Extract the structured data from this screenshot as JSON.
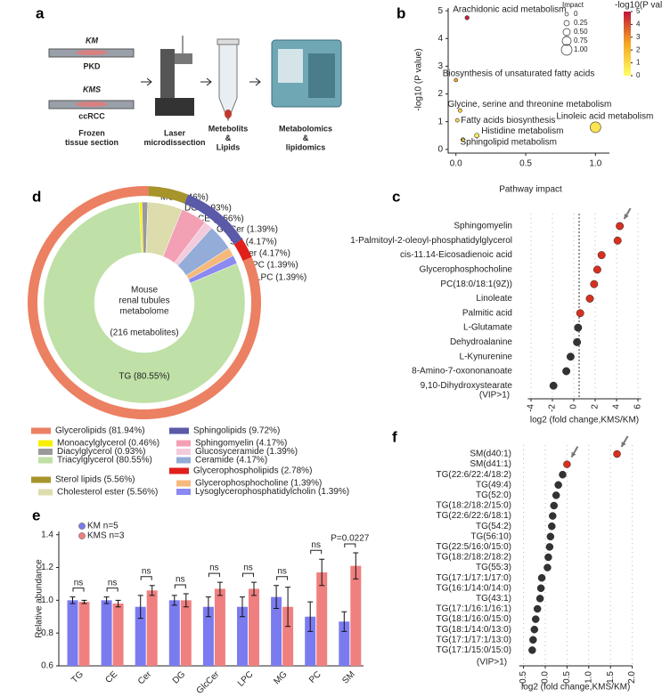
{
  "figure_a": {
    "panel": "a",
    "km": "KM",
    "pkd": "PKD",
    "kms": "KMS",
    "ccrcc": "ccRCC",
    "steps": [
      [
        "Frozen",
        "tissue section"
      ],
      [
        "Laser",
        "microdissection"
      ],
      [
        "Metebolits",
        "&",
        "Lipids"
      ],
      [
        "Metabolomics",
        "&",
        "lipidomics"
      ]
    ]
  },
  "chart_data": [
    {
      "panel": "b",
      "type": "scatter",
      "xlabel": "Pathway impact",
      "ylabel": "-log10 (P value)",
      "xlim": [
        -0.03,
        1.1
      ],
      "ylim": [
        -0.07,
        5.1
      ],
      "xticks": [
        {
          "value": 0,
          "label": "0.0"
        },
        {
          "value": 0.5,
          "label": "0.5"
        },
        {
          "value": 1,
          "label": "1.0"
        }
      ],
      "yticks": [
        0,
        1,
        2,
        3,
        4,
        5
      ],
      "points": [
        {
          "name": "Arachidonic acid metabolism",
          "x": 0.08,
          "y": 4.75
        },
        {
          "name": "Biosynthesis of unsaturated fatty acids",
          "x": 0.0,
          "y": 2.5
        },
        {
          "name": "Glycine, serine and threonine metabolism",
          "x": 0.03,
          "y": 1.4
        },
        {
          "name": "Fatty acids biosynthesis",
          "x": 0.01,
          "y": 1.05
        },
        {
          "name": "Linoleic acid metabolism",
          "x": 1.0,
          "y": 0.8
        },
        {
          "name": "Histidine metabolism",
          "x": 0.15,
          "y": 0.5
        },
        {
          "name": "Sphingolipid metabolism",
          "x": 0.05,
          "y": 0.35
        }
      ],
      "size_legend": {
        "title": "Impact",
        "values": [
          0,
          0.25,
          {
            "value": 0.5,
            "label": "0.50"
          },
          0.75,
          {
            "value": 1,
            "label": "1.00"
          }
        ]
      },
      "colorbar": {
        "title": "-log10(P value)",
        "ticks": [
          0,
          1,
          2,
          3,
          4,
          5
        ],
        "colors": [
          "#ffff66",
          "#f5a623",
          "#c0143c"
        ]
      }
    },
    {
      "panel": "d",
      "type": "pie",
      "center_text": [
        "Mouse",
        "renal tubules",
        "metabolome"
      ],
      "center_note": "(216 metabolites)",
      "groups": [
        {
          "name": "Glycerolipids (81.94%)",
          "value": 81.94,
          "color": "#ec8062",
          "members": [
            {
              "name": "Monoacylglycerol (0.46%)",
              "label": "MG (0.46%)",
              "value": 0.46,
              "color": "#f7f000"
            },
            {
              "name": "Diacylglycerol (0.93%)",
              "label": "DG (0.93%)",
              "value": 0.93,
              "color": "#9a9a9a"
            },
            {
              "name": "Triacylglycerol (80.55%)",
              "label": "TG (80.55%)",
              "value": 80.55,
              "color": "#bfe0a6"
            }
          ]
        },
        {
          "name": "Sphingolipids (9.72%)",
          "value": 9.72,
          "color": "#5a5aa8",
          "members": [
            {
              "name": "Sphingomyelin (4.17%)",
              "label": "SM (4.17%)",
              "value": 4.17,
              "color": "#f3a0b4"
            },
            {
              "name": "Glucosyceramide (1.39%)",
              "label": "GlcCer (1.39%)",
              "value": 1.39,
              "color": "#f3cbdc"
            },
            {
              "name": "Ceramide (4.17%)",
              "label": "Cer (4.17%)",
              "value": 4.17,
              "color": "#93acd8"
            }
          ]
        },
        {
          "name": "Sterol lipids (5.56%)",
          "value": 5.56,
          "color": "#a7942a",
          "members": [
            {
              "name": "Cholesterol ester (5.56%)",
              "label": "CE (5.56%)",
              "value": 5.56,
              "color": "#dcdcac"
            }
          ]
        },
        {
          "name": "Glycerophospholipids (2.78%)",
          "value": 2.78,
          "color": "#e0201c",
          "members": [
            {
              "name": "Glycerophosphocholine (1.39%)",
              "label": "PC (1.39%)",
              "value": 1.39,
              "color": "#f6b97c"
            },
            {
              "name": "Lysoglycerophosphatidylcholin (1.39%)",
              "label": "LPC (1.39%)",
              "value": 1.39,
              "color": "#8a8af0"
            }
          ]
        }
      ]
    },
    {
      "panel": "c",
      "type": "dot",
      "xlabel": "log2 (fold change,KMS/KM)",
      "note": "(VIP>1)",
      "categories": [
        "Sphingomyelin",
        "1-Palmitoyl-2-oleoyl-phosphatidylglycerol",
        "cis-11.14-Eicosadienoic acid",
        "Glycerophosphocholine",
        "PC(18:0/18:1(9Z))",
        "Linoleate",
        "Palmitic acid",
        "L-Glutamate",
        "Dehydroalanine",
        "L-Kynurenine",
        "8-Amino-7-oxononanoate",
        "9,10-Dihydroxystearate"
      ],
      "values": [
        4.3,
        4.1,
        2.6,
        2.2,
        1.9,
        1.5,
        0.6,
        0.4,
        0.3,
        -0.3,
        -0.7,
        -1.9
      ],
      "colors": [
        "#d7301f",
        "#d7301f",
        "#d7301f",
        "#d7301f",
        "#d7301f",
        "#d7301f",
        "#d7301f",
        "#333333",
        "#333333",
        "#333333",
        "#333333",
        "#333333"
      ],
      "label_colors": [
        "#e0245e",
        "#222222",
        "#222222",
        "#222222",
        "#222222",
        "#222222",
        "#222222",
        "#222222",
        "#222222",
        "#222222",
        "#222222",
        "#222222"
      ],
      "xlim": [
        -4.3,
        6.3
      ],
      "xticks": [
        -4,
        -2,
        0,
        2,
        4,
        6
      ],
      "vline": 0.5
    },
    {
      "panel": "e",
      "type": "bar",
      "ylabel": "Relative abundance",
      "categories": [
        "TG",
        "CE",
        "Cer",
        "DG",
        "GlcCer",
        "LPC",
        "MG",
        "PC",
        "SM"
      ],
      "series": [
        {
          "name": "KM n=5",
          "color": "#7b7bf0",
          "values": [
            1.0,
            1.0,
            0.96,
            1.0,
            0.96,
            0.96,
            1.02,
            0.9,
            0.87
          ],
          "errors": [
            0.02,
            0.02,
            0.07,
            0.03,
            0.06,
            0.06,
            0.07,
            0.09,
            0.06
          ]
        },
        {
          "name": "KMS n=3",
          "color": "#f08080",
          "values": [
            0.99,
            0.98,
            1.06,
            1.0,
            1.07,
            1.07,
            0.96,
            1.17,
            1.21
          ],
          "errors": [
            0.01,
            0.02,
            0.03,
            0.04,
            0.04,
            0.04,
            0.12,
            0.08,
            0.08
          ]
        }
      ],
      "annotations": [
        "ns",
        "ns",
        "ns",
        "ns",
        "ns",
        "ns",
        "ns",
        "ns",
        "P=0.0227"
      ],
      "ylim": [
        0.6,
        1.42
      ],
      "yticks": [
        {
          "value": 0.6,
          "label": "0.6"
        },
        {
          "value": 0.8,
          "label": "0.8"
        },
        {
          "value": 1,
          "label": "1.0"
        },
        {
          "value": 1.2,
          "label": "1.2"
        },
        {
          "value": 1.4,
          "label": "1.4"
        }
      ]
    },
    {
      "panel": "f",
      "type": "dot",
      "xlabel": "log2 (fold change,KMS/KM)",
      "note": "(VIP>1)",
      "categories": [
        "SM(d40:1)",
        "SM(d41:1)",
        "TG(22:6/22:4/18:2)",
        "TG(49:4)",
        "TG(52:0)",
        "TG(18:2/18:2/15:0)",
        "TG(22:6/22:6/18:1)",
        "TG(54:2)",
        "TG(56:10)",
        "TG(22:5/16:0/15:0)",
        "TG(18:2/18:2/18:2)",
        "TG(55:3)",
        "TG(17:1/17:1/17:0)",
        "TG(16:1/14:0/14:0)",
        "TG(43:1)",
        "TG(17:1/16:1/16:1)",
        "TG(18:1/16:0/15:0)",
        "TG(18:1/14:0/13:0)",
        "TG(17:1/17:1/13:0)",
        "TG(17:1/15:0/15:0)"
      ],
      "values": [
        1.65,
        0.5,
        0.4,
        0.3,
        0.25,
        0.2,
        0.17,
        0.15,
        0.12,
        0.1,
        0.07,
        0.05,
        -0.08,
        -0.1,
        -0.12,
        -0.18,
        -0.22,
        -0.25,
        -0.28,
        -0.3
      ],
      "colors": [
        "#d7301f",
        "#d7301f",
        "#333333",
        "#333333",
        "#333333",
        "#333333",
        "#333333",
        "#333333",
        "#333333",
        "#333333",
        "#333333",
        "#333333",
        "#333333",
        "#333333",
        "#333333",
        "#333333",
        "#333333",
        "#333333",
        "#333333",
        "#333333"
      ],
      "label_colors": [
        "#e0245e",
        "#e0245e",
        "#222222",
        "#222222",
        "#222222",
        "#222222",
        "#222222",
        "#222222",
        "#222222",
        "#222222",
        "#222222",
        "#222222",
        "#222222",
        "#222222",
        "#222222",
        "#222222",
        "#222222",
        "#222222",
        "#222222",
        "#222222"
      ],
      "xlim": [
        -0.6,
        2.0
      ],
      "xticks": [
        {
          "value": -0.5,
          "label": "-0.5"
        },
        {
          "value": 0,
          "label": "0.0"
        },
        {
          "value": 0.5,
          "label": "0.5"
        },
        {
          "value": 1,
          "label": "1.0"
        },
        {
          "value": 1.5,
          "label": "1.5"
        },
        {
          "value": 2,
          "label": "2.0"
        }
      ]
    }
  ]
}
